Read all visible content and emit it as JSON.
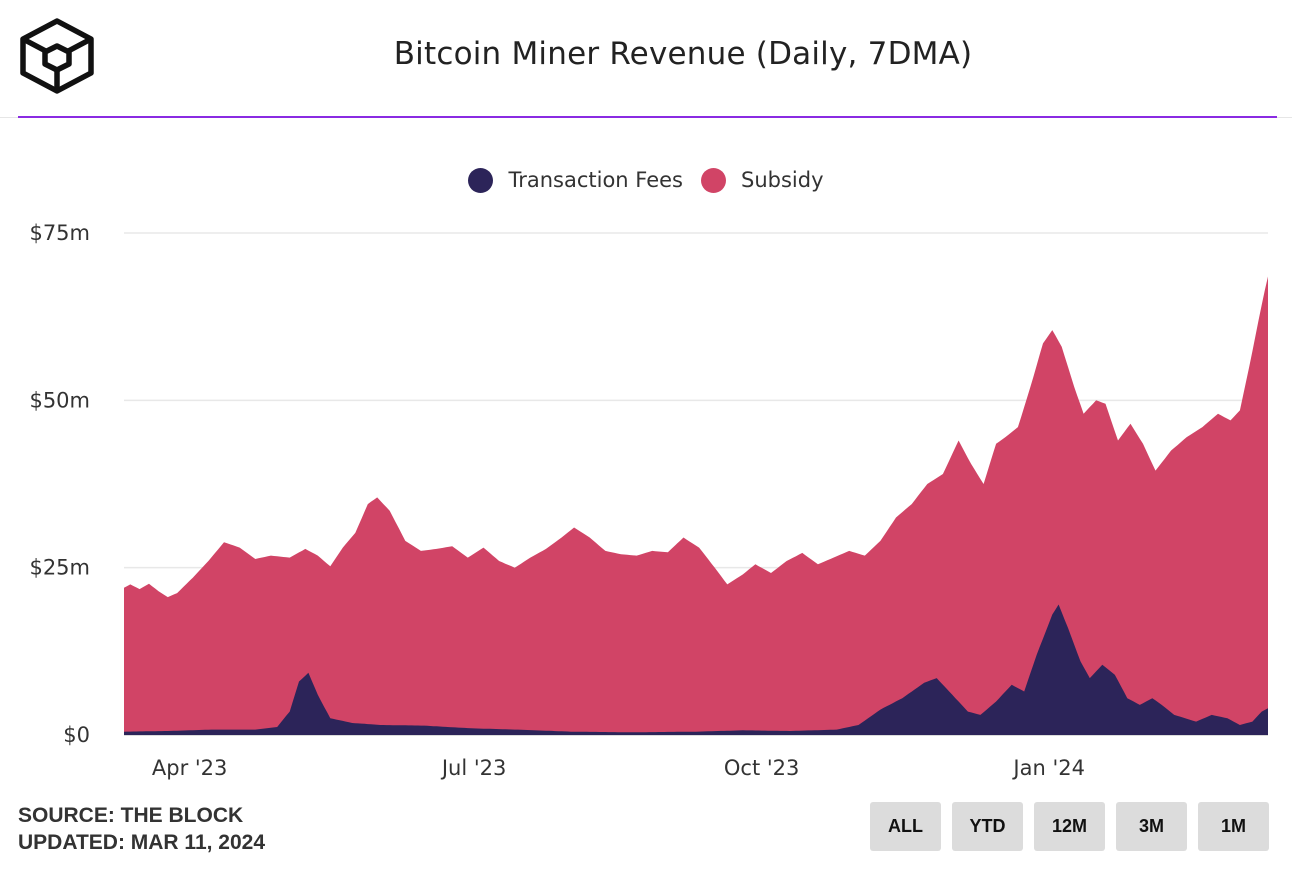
{
  "header": {
    "title": "Bitcoin Miner Revenue (Daily, 7DMA)"
  },
  "legend": {
    "fees_label": "Transaction Fees",
    "subsidy_label": "Subsidy"
  },
  "footer": {
    "source": "SOURCE: THE BLOCK",
    "updated": "UPDATED: MAR 11, 2024"
  },
  "range_buttons": [
    "ALL",
    "YTD",
    "12M",
    "3M",
    "1M"
  ],
  "colors": {
    "fees": "#2c2459",
    "subsidy": "#d14466",
    "accent": "#8a2be2"
  },
  "chart_data": {
    "type": "area",
    "stacked": true,
    "title": "Bitcoin Miner Revenue (Daily, 7DMA)",
    "x_range": [
      "2023-03-11",
      "2024-03-11"
    ],
    "ylim": [
      0,
      75
    ],
    "yticks": [
      {
        "value": 0,
        "label": "$0"
      },
      {
        "value": 25,
        "label": "$25m"
      },
      {
        "value": 50,
        "label": "$50m"
      },
      {
        "value": 75,
        "label": "$75m"
      }
    ],
    "xticks": [
      {
        "date": "2023-04-01",
        "label": "Apr '23"
      },
      {
        "date": "2023-07-01",
        "label": "Jul '23"
      },
      {
        "date": "2023-10-01",
        "label": "Oct '23"
      },
      {
        "date": "2024-01-01",
        "label": "Jan '24"
      }
    ],
    "grid": true,
    "legend_position": "top-center",
    "series": [
      {
        "name": "Transaction Fees",
        "color": "#2c2459",
        "points": [
          [
            "2023-03-11",
            0.5
          ],
          [
            "2023-03-25",
            0.6
          ],
          [
            "2023-04-08",
            0.8
          ],
          [
            "2023-04-22",
            0.8
          ],
          [
            "2023-04-29",
            1.2
          ],
          [
            "2023-05-03",
            3.5
          ],
          [
            "2023-05-06",
            8.0
          ],
          [
            "2023-05-09",
            9.3
          ],
          [
            "2023-05-12",
            6.0
          ],
          [
            "2023-05-16",
            2.5
          ],
          [
            "2023-05-23",
            1.8
          ],
          [
            "2023-06-01",
            1.5
          ],
          [
            "2023-06-15",
            1.4
          ],
          [
            "2023-06-30",
            1.0
          ],
          [
            "2023-07-15",
            0.8
          ],
          [
            "2023-08-01",
            0.5
          ],
          [
            "2023-08-20",
            0.4
          ],
          [
            "2023-09-10",
            0.5
          ],
          [
            "2023-09-25",
            0.7
          ],
          [
            "2023-10-10",
            0.6
          ],
          [
            "2023-10-25",
            0.8
          ],
          [
            "2023-11-01",
            1.5
          ],
          [
            "2023-11-08",
            3.8
          ],
          [
            "2023-11-15",
            5.5
          ],
          [
            "2023-11-22",
            7.8
          ],
          [
            "2023-11-26",
            8.5
          ],
          [
            "2023-12-01",
            6.0
          ],
          [
            "2023-12-06",
            3.5
          ],
          [
            "2023-12-10",
            3.0
          ],
          [
            "2023-12-15",
            5.0
          ],
          [
            "2023-12-20",
            7.5
          ],
          [
            "2023-12-24",
            6.5
          ],
          [
            "2023-12-28",
            12.0
          ],
          [
            "2024-01-02",
            18.0
          ],
          [
            "2024-01-04",
            19.5
          ],
          [
            "2024-01-07",
            16.0
          ],
          [
            "2024-01-11",
            11.0
          ],
          [
            "2024-01-14",
            8.5
          ],
          [
            "2024-01-18",
            10.5
          ],
          [
            "2024-01-22",
            9.0
          ],
          [
            "2024-01-26",
            5.5
          ],
          [
            "2024-01-30",
            4.5
          ],
          [
            "2024-02-03",
            5.5
          ],
          [
            "2024-02-06",
            4.5
          ],
          [
            "2024-02-10",
            3.0
          ],
          [
            "2024-02-17",
            2.0
          ],
          [
            "2024-02-22",
            3.0
          ],
          [
            "2024-02-27",
            2.5
          ],
          [
            "2024-03-02",
            1.5
          ],
          [
            "2024-03-06",
            2.0
          ],
          [
            "2024-03-09",
            3.5
          ],
          [
            "2024-03-11",
            4.0
          ]
        ]
      },
      {
        "name": "Subsidy",
        "color": "#d14466",
        "total_points": [
          [
            "2023-03-11",
            22.0
          ],
          [
            "2023-03-13",
            22.5
          ],
          [
            "2023-03-16",
            21.8
          ],
          [
            "2023-03-19",
            22.6
          ],
          [
            "2023-03-22",
            21.5
          ],
          [
            "2023-03-25",
            20.6
          ],
          [
            "2023-03-28",
            21.2
          ],
          [
            "2023-04-02",
            23.5
          ],
          [
            "2023-04-07",
            26.0
          ],
          [
            "2023-04-12",
            28.8
          ],
          [
            "2023-04-17",
            28.0
          ],
          [
            "2023-04-22",
            26.3
          ],
          [
            "2023-04-27",
            26.8
          ],
          [
            "2023-05-03",
            26.5
          ],
          [
            "2023-05-08",
            27.8
          ],
          [
            "2023-05-12",
            26.8
          ],
          [
            "2023-05-16",
            25.2
          ],
          [
            "2023-05-20",
            28.0
          ],
          [
            "2023-05-24",
            30.2
          ],
          [
            "2023-05-28",
            34.5
          ],
          [
            "2023-05-31",
            35.5
          ],
          [
            "2023-06-04",
            33.5
          ],
          [
            "2023-06-09",
            29.0
          ],
          [
            "2023-06-14",
            27.5
          ],
          [
            "2023-06-19",
            27.8
          ],
          [
            "2023-06-24",
            28.2
          ],
          [
            "2023-06-29",
            26.5
          ],
          [
            "2023-07-04",
            28.0
          ],
          [
            "2023-07-09",
            26.0
          ],
          [
            "2023-07-14",
            25.0
          ],
          [
            "2023-07-19",
            26.5
          ],
          [
            "2023-07-24",
            27.8
          ],
          [
            "2023-07-29",
            29.5
          ],
          [
            "2023-08-02",
            31.0
          ],
          [
            "2023-08-07",
            29.5
          ],
          [
            "2023-08-12",
            27.5
          ],
          [
            "2023-08-17",
            27.0
          ],
          [
            "2023-08-22",
            26.8
          ],
          [
            "2023-08-27",
            27.5
          ],
          [
            "2023-09-01",
            27.3
          ],
          [
            "2023-09-06",
            29.5
          ],
          [
            "2023-09-11",
            28.0
          ],
          [
            "2023-09-16",
            25.0
          ],
          [
            "2023-09-20",
            22.5
          ],
          [
            "2023-09-25",
            24.0
          ],
          [
            "2023-09-29",
            25.5
          ],
          [
            "2023-10-04",
            24.2
          ],
          [
            "2023-10-09",
            26.0
          ],
          [
            "2023-10-14",
            27.2
          ],
          [
            "2023-10-19",
            25.5
          ],
          [
            "2023-10-24",
            26.5
          ],
          [
            "2023-10-29",
            27.5
          ],
          [
            "2023-11-03",
            26.8
          ],
          [
            "2023-11-08",
            29.0
          ],
          [
            "2023-11-13",
            32.5
          ],
          [
            "2023-11-18",
            34.5
          ],
          [
            "2023-11-23",
            37.5
          ],
          [
            "2023-11-28",
            39.0
          ],
          [
            "2023-12-03",
            44.0
          ],
          [
            "2023-12-07",
            40.5
          ],
          [
            "2023-12-11",
            37.5
          ],
          [
            "2023-12-15",
            43.5
          ],
          [
            "2023-12-18",
            44.5
          ],
          [
            "2023-12-22",
            46.0
          ],
          [
            "2023-12-26",
            52.0
          ],
          [
            "2023-12-30",
            58.5
          ],
          [
            "2024-01-02",
            60.5
          ],
          [
            "2024-01-05",
            58.0
          ],
          [
            "2024-01-09",
            52.0
          ],
          [
            "2024-01-12",
            48.0
          ],
          [
            "2024-01-16",
            50.0
          ],
          [
            "2024-01-19",
            49.5
          ],
          [
            "2024-01-23",
            44.0
          ],
          [
            "2024-01-27",
            46.5
          ],
          [
            "2024-01-31",
            43.5
          ],
          [
            "2024-02-04",
            39.5
          ],
          [
            "2024-02-09",
            42.5
          ],
          [
            "2024-02-14",
            44.5
          ],
          [
            "2024-02-19",
            46.0
          ],
          [
            "2024-02-24",
            48.0
          ],
          [
            "2024-02-28",
            47.0
          ],
          [
            "2024-03-02",
            48.5
          ],
          [
            "2024-03-05",
            55.0
          ],
          [
            "2024-03-08",
            62.0
          ],
          [
            "2024-03-10",
            66.5
          ],
          [
            "2024-03-11",
            68.5
          ]
        ]
      }
    ]
  },
  "_note_unused": null
}
